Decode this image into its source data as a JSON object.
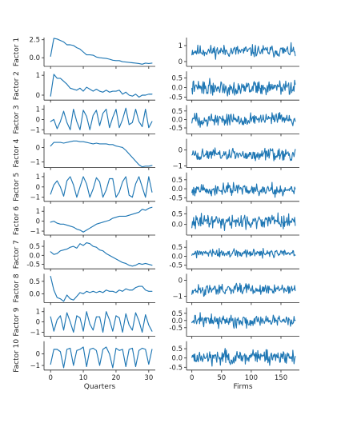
{
  "chart_data": {
    "type": "line",
    "colors": {
      "line": "#1f77b4"
    },
    "columns": [
      {
        "xlabel": "Quarters",
        "xlim": [
          -2,
          32
        ],
        "xticks": [
          0,
          10,
          20,
          30
        ]
      },
      {
        "xlabel": "Firms",
        "xlim": [
          -9,
          181
        ],
        "xticks": [
          0,
          50,
          100,
          150
        ]
      }
    ],
    "rows": [
      {
        "label": "Factor 1",
        "left": {
          "ylim": [
            -1.2,
            2.8
          ],
          "yticks": [
            0.0,
            2.5
          ],
          "ytick_labels": [
            "0.0",
            "2.5"
          ],
          "y": [
            0.2,
            2.7,
            2.6,
            2.4,
            2.2,
            1.8,
            1.8,
            1.7,
            1.4,
            1.2,
            0.8,
            0.4,
            0.4,
            0.35,
            0.1,
            0.0,
            -0.05,
            -0.1,
            -0.2,
            -0.35,
            -0.4,
            -0.4,
            -0.55,
            -0.6,
            -0.65,
            -0.7,
            -0.75,
            -0.8,
            -0.9,
            -0.75,
            -0.8,
            -0.75
          ]
        },
        "right": {
          "ylim": [
            -0.3,
            1.5
          ],
          "yticks": [
            0,
            1
          ],
          "ytick_labels": [
            "0",
            "1"
          ],
          "seed": 11,
          "center": 0.65,
          "amp": 0.35
        }
      },
      {
        "label": "Factor 2",
        "left": {
          "ylim": [
            -0.25,
            1.2
          ],
          "yticks": [
            0,
            1
          ],
          "ytick_labels": [
            "0",
            "1"
          ],
          "y": [
            -0.05,
            1.05,
            0.85,
            0.85,
            0.7,
            0.55,
            0.35,
            0.3,
            0.25,
            0.35,
            0.2,
            0.4,
            0.3,
            0.2,
            0.3,
            0.2,
            0.15,
            0.25,
            0.15,
            0.2,
            0.2,
            0.25,
            0.05,
            0.15,
            0.0,
            -0.05,
            0.05,
            -0.1,
            0.0,
            0.0,
            0.05,
            0.05
          ]
        },
        "right": {
          "ylim": [
            -0.65,
            0.85
          ],
          "yticks": [
            -0.5,
            0.0,
            0.5
          ],
          "ytick_labels": [
            "-0.5",
            "0.0",
            "0.5"
          ],
          "seed": 22,
          "center": 0.0,
          "amp": 0.35
        }
      },
      {
        "label": "Factor 3",
        "left": {
          "ylim": [
            -1.4,
            1.4
          ],
          "yticks": [
            -1,
            0,
            1
          ],
          "ytick_labels": [
            "−1",
            "0",
            "1"
          ],
          "y": [
            -0.2,
            0.0,
            -0.9,
            -0.2,
            0.8,
            -0.3,
            -1.0,
            1.0,
            -0.2,
            -1.0,
            0.9,
            0.3,
            -1.0,
            0.4,
            0.9,
            -0.6,
            0.6,
            1.0,
            -0.8,
            0.2,
            1.0,
            -0.8,
            0.0,
            1.1,
            -0.5,
            -0.3,
            1.0,
            -0.2,
            -0.7,
            1.0,
            -0.8,
            -0.2
          ]
        },
        "right": {
          "ylim": [
            -0.85,
            0.85
          ],
          "yticks": [
            -0.5,
            0.0,
            0.5
          ],
          "ytick_labels": [
            "-0.5",
            "0.0",
            "0.5"
          ],
          "seed": 33,
          "center": 0.0,
          "amp": 0.35
        }
      },
      {
        "label": "Factor 4",
        "left": {
          "ylim": [
            -1.4,
            0.6
          ],
          "yticks": [
            -1,
            0
          ],
          "ytick_labels": [
            "−1",
            "0"
          ],
          "y": [
            0.1,
            0.35,
            0.35,
            0.35,
            0.3,
            0.35,
            0.4,
            0.45,
            0.45,
            0.4,
            0.4,
            0.35,
            0.3,
            0.25,
            0.3,
            0.25,
            0.25,
            0.25,
            0.2,
            0.2,
            0.1,
            0.05,
            0.0,
            -0.2,
            -0.45,
            -0.7,
            -0.95,
            -1.2,
            -1.35,
            -1.3,
            -1.3,
            -1.25
          ]
        },
        "right": {
          "ylim": [
            -1.1,
            0.7
          ],
          "yticks": [
            -1,
            0
          ],
          "ytick_labels": [
            "−1",
            "0"
          ],
          "seed": 44,
          "center": -0.3,
          "amp": 0.35
        }
      },
      {
        "label": "Factor 5",
        "left": {
          "ylim": [
            -1.4,
            1.4
          ],
          "yticks": [
            -1,
            0,
            1
          ],
          "ytick_labels": [
            "−1",
            "0",
            "1"
          ],
          "y": [
            -0.7,
            0.2,
            0.6,
            0.0,
            -0.9,
            0.6,
            1.0,
            0.2,
            -1.0,
            0.0,
            1.0,
            0.3,
            -1.0,
            -0.2,
            0.9,
            0.5,
            -1.0,
            -0.3,
            0.8,
            0.8,
            -1.0,
            -0.5,
            0.5,
            1.0,
            -0.8,
            -1.0,
            0.3,
            1.0,
            0.0,
            -1.0,
            1.0,
            -0.5
          ]
        },
        "right": {
          "ylim": [
            -0.7,
            0.9
          ],
          "yticks": [
            -0.5,
            0.0,
            0.5
          ],
          "ytick_labels": [
            "-0.5",
            "0.0",
            "0.5"
          ],
          "seed": 55,
          "center": -0.05,
          "amp": 0.3
        }
      },
      {
        "label": "Factor 6",
        "left": {
          "ylim": [
            -1.4,
            1.5
          ],
          "yticks": [
            -1,
            0,
            1
          ],
          "ytick_labels": [
            "−1",
            "0",
            "1"
          ],
          "y": [
            -0.1,
            0.0,
            -0.2,
            -0.3,
            -0.3,
            -0.4,
            -0.5,
            -0.6,
            -0.8,
            -0.9,
            -1.1,
            -0.9,
            -0.7,
            -0.5,
            -0.3,
            -0.2,
            -0.1,
            0.0,
            0.1,
            0.3,
            0.4,
            0.5,
            0.5,
            0.5,
            0.6,
            0.7,
            0.8,
            0.9,
            1.2,
            1.1,
            1.3,
            1.4
          ]
        },
        "right": {
          "ylim": [
            -0.5,
            0.85
          ],
          "yticks": [
            0.0,
            0.5
          ],
          "ytick_labels": [
            "0.0",
            "0.5"
          ],
          "seed": 66,
          "center": 0.15,
          "amp": 0.3
        }
      },
      {
        "label": "Factor 7",
        "left": {
          "ylim": [
            -0.75,
            0.85
          ],
          "yticks": [
            -0.5,
            0.0,
            0.5
          ],
          "ytick_labels": [
            "-0.5",
            "0.0",
            "0.5"
          ],
          "y": [
            0.2,
            0.05,
            0.1,
            0.25,
            0.3,
            0.35,
            0.45,
            0.5,
            0.4,
            0.65,
            0.55,
            0.7,
            0.65,
            0.5,
            0.45,
            0.3,
            0.25,
            0.1,
            0.0,
            -0.1,
            -0.2,
            -0.3,
            -0.4,
            -0.45,
            -0.55,
            -0.6,
            -0.55,
            -0.45,
            -0.5,
            -0.45,
            -0.5,
            -0.55
          ]
        },
        "right": {
          "ylim": [
            -0.7,
            0.9
          ],
          "yticks": [
            -0.5,
            0.0,
            0.5
          ],
          "ytick_labels": [
            "-0.5",
            "0.0",
            "0.5"
          ],
          "seed": 77,
          "center": 0.15,
          "amp": 0.22
        }
      },
      {
        "label": "Factor 8",
        "left": {
          "ylim": [
            -0.35,
            0.8
          ],
          "yticks": [
            0.0,
            0.5
          ],
          "ytick_labels": [
            "0.0",
            "0.5"
          ],
          "y": [
            0.7,
            0.15,
            -0.15,
            -0.2,
            -0.3,
            -0.05,
            -0.2,
            -0.25,
            -0.1,
            0.05,
            0.0,
            0.1,
            0.05,
            0.1,
            0.05,
            0.1,
            0.05,
            0.15,
            0.1,
            0.1,
            0.05,
            0.15,
            0.1,
            0.2,
            0.15,
            0.15,
            0.25,
            0.3,
            0.3,
            0.15,
            0.1,
            0.1
          ]
        },
        "right": {
          "ylim": [
            -1.4,
            0.4
          ],
          "yticks": [
            -1,
            0
          ],
          "ytick_labels": [
            "−1",
            "0"
          ],
          "seed": 88,
          "center": -0.6,
          "amp": 0.3
        }
      },
      {
        "label": "Factor 9",
        "left": {
          "ylim": [
            -1.4,
            1.4
          ],
          "yticks": [
            -1,
            0,
            1
          ],
          "ytick_labels": [
            "−1",
            "0",
            "1"
          ],
          "y": [
            0.5,
            -0.9,
            0.2,
            0.6,
            -0.8,
            0.9,
            0.0,
            -1.0,
            0.6,
            0.4,
            -0.9,
            1.0,
            -0.2,
            -0.8,
            0.5,
            0.5,
            -1.0,
            1.0,
            0.2,
            -0.9,
            0.6,
            0.4,
            -1.0,
            0.8,
            -0.3,
            -0.8,
            0.9,
            0.1,
            -1.0,
            0.7,
            -0.3,
            -0.9
          ]
        },
        "right": {
          "ylim": [
            -1.1,
            0.9
          ],
          "yticks": [
            -0.5,
            0.0,
            0.5
          ],
          "ytick_labels": [
            "-0.5",
            "0.0",
            "0.5"
          ],
          "seed": 99,
          "center": 0.0,
          "amp": 0.4
        }
      },
      {
        "label": "Factor 10",
        "left": {
          "ylim": [
            -1.4,
            1.1
          ],
          "yticks": [
            -1,
            0
          ],
          "ytick_labels": [
            "−1",
            "0"
          ],
          "y": [
            -0.9,
            0.4,
            0.4,
            0.2,
            -1.2,
            0.4,
            0.5,
            -1.0,
            0.3,
            0.4,
            0.6,
            -1.1,
            0.4,
            0.5,
            0.3,
            -1.0,
            0.4,
            0.6,
            0.0,
            -1.2,
            0.5,
            0.3,
            0.4,
            -1.1,
            0.4,
            0.5,
            -1.1,
            0.3,
            0.5,
            0.4,
            -0.9,
            0.4
          ]
        },
        "right": {
          "ylim": [
            -0.65,
            0.9
          ],
          "yticks": [
            -0.5,
            0.0,
            0.5
          ],
          "ytick_labels": [
            "-0.5",
            "0.0",
            "0.5"
          ],
          "seed": 111,
          "center": 0.05,
          "amp": 0.35
        }
      }
    ]
  }
}
